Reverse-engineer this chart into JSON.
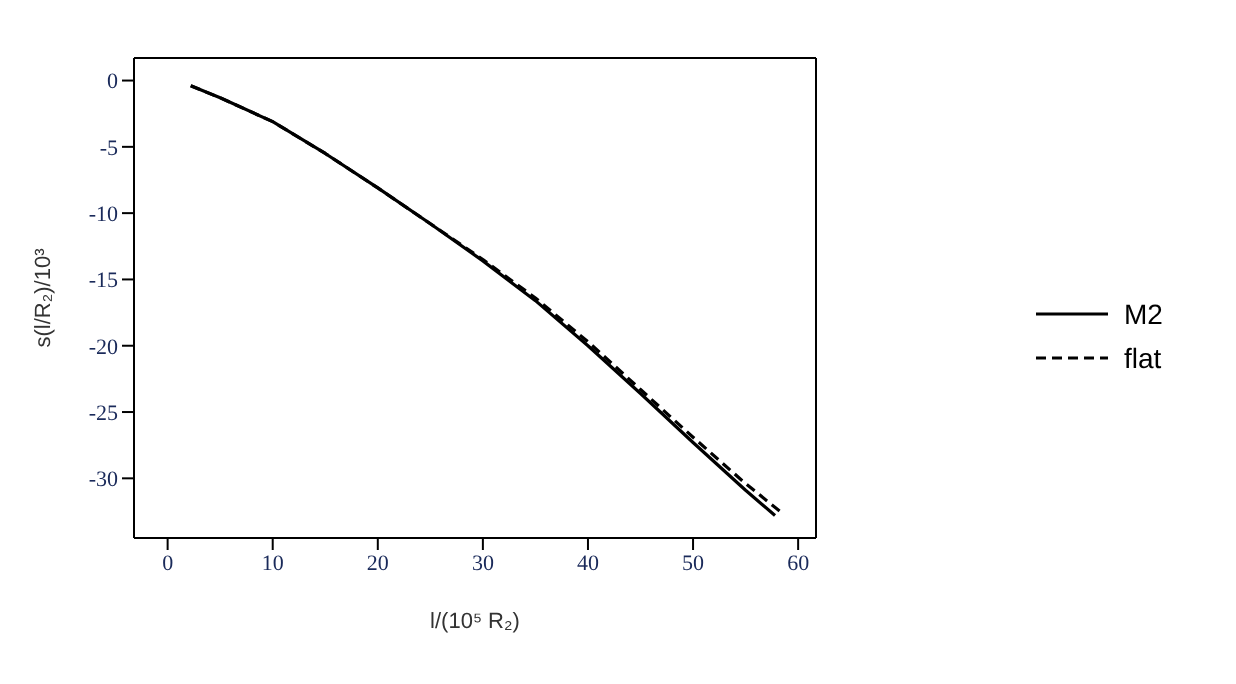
{
  "chart_data": {
    "type": "line",
    "xlabel": "l/(10⁵ R₂)",
    "ylabel": "s(l/R₂)/10³",
    "xlim": [
      -3.2,
      61.7
    ],
    "xticks": [
      0,
      10,
      20,
      30,
      40,
      50,
      60
    ],
    "ylim": [
      -34.5,
      1.7
    ],
    "yticks": [
      -30,
      -25,
      -20,
      -15,
      -10,
      -5,
      0
    ],
    "grid": false,
    "legend": "right",
    "marker": "none",
    "series": [
      {
        "name": "M2",
        "color": "#000000",
        "line_style": "solid",
        "x": [
          2.2,
          5,
          10,
          15,
          20,
          25,
          30,
          35,
          40,
          45,
          50,
          55,
          57.8
        ],
        "values": [
          -0.4,
          -1.3,
          -3.1,
          -5.5,
          -8.1,
          -10.8,
          -13.6,
          -16.6,
          -20.0,
          -23.6,
          -27.3,
          -30.9,
          -32.8
        ]
      },
      {
        "name": "flat",
        "color": "#000000",
        "line_style": "dashed",
        "x": [
          2.2,
          5,
          10,
          15,
          20,
          25,
          30,
          35,
          40,
          45,
          50,
          55,
          58.3
        ],
        "values": [
          -0.4,
          -1.3,
          -3.1,
          -5.5,
          -8.1,
          -10.8,
          -13.5,
          -16.4,
          -19.7,
          -23.3,
          -26.9,
          -30.4,
          -32.5
        ]
      }
    ]
  }
}
